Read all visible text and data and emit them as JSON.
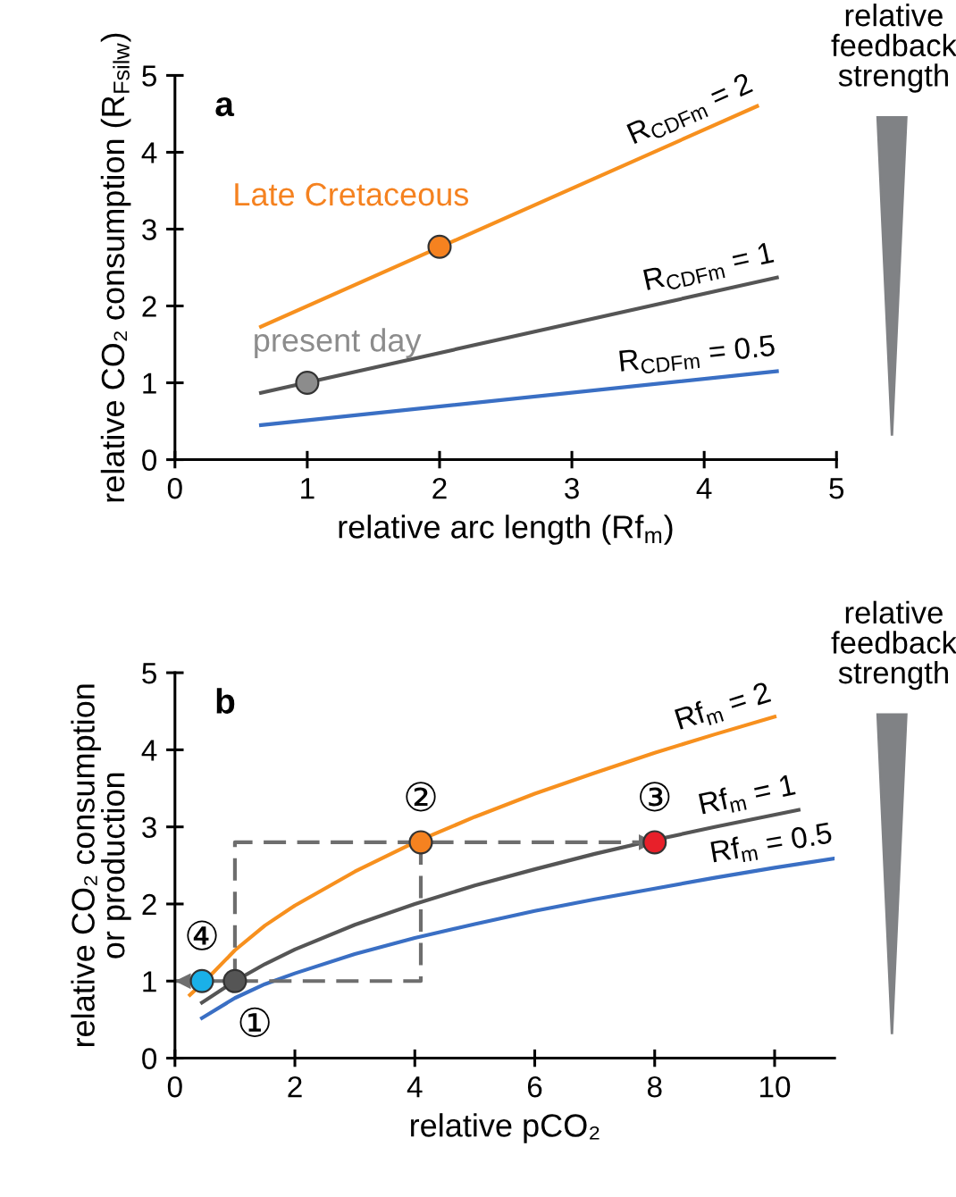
{
  "chart_data": [
    {
      "type": "line",
      "title": "a",
      "xlabel": "relative arc length (Rf$_{m}$)",
      "ylabel": "relative CO₂ consumption (R$_{Fsilw}$)",
      "xlim": [
        0,
        5
      ],
      "ylim": [
        0,
        5
      ],
      "xticks": [
        0,
        1,
        2,
        3,
        4,
        5
      ],
      "yticks": [
        0,
        1,
        2,
        3,
        4,
        5
      ],
      "grid": false,
      "legend": false,
      "marker": "none",
      "line_style": "solid",
      "series": [
        {
          "name": "R$_{CDFm}$ = 2",
          "color": "#f7901e",
          "x": [
            0.65,
            4.4
          ],
          "values": [
            1.73,
            4.6
          ]
        },
        {
          "name": "R$_{CDFm}$ = 1",
          "color": "#555555",
          "x": [
            0.65,
            4.55
          ],
          "values": [
            0.87,
            2.37
          ]
        },
        {
          "name": "R$_{CDFm}$ = 0.5",
          "color": "#3a6fc4",
          "x": [
            0.65,
            4.55
          ],
          "values": [
            0.45,
            1.15
          ]
        },
        {
          "type": "scatter",
          "marker": "circle",
          "color": "#f58220",
          "x": [
            2
          ],
          "values": [
            2.77
          ]
        },
        {
          "type": "scatter",
          "marker": "circle",
          "color": "#8c8c8c",
          "x": [
            1
          ],
          "values": [
            1.0
          ]
        }
      ],
      "annotations": [
        {
          "text": "Late Cretaceous",
          "x": 2,
          "y": 2.77
        },
        {
          "text": "present day",
          "x": 1,
          "y": 1.0
        },
        "relative feedback strength"
      ]
    },
    {
      "type": "line",
      "title": "b",
      "xlabel": "relative pCO₂",
      "ylabel": "relative CO₂ consumption or production",
      "xlim": [
        0,
        11
      ],
      "ylim": [
        0,
        5
      ],
      "xticks": [
        0,
        2,
        4,
        6,
        8,
        10
      ],
      "yticks": [
        0,
        1,
        2,
        3,
        4,
        5
      ],
      "grid": false,
      "legend": false,
      "marker": "none",
      "line_style": "solid",
      "series": [
        {
          "name": "Rf$_{m}$ = 2",
          "color": "#f7901e",
          "x": [
            0.25,
            0.5,
            1,
            1.5,
            2,
            3,
            4,
            5,
            6,
            7,
            8,
            9,
            10
          ],
          "values": [
            0.82,
            1.0,
            1.4,
            1.72,
            1.98,
            2.42,
            2.8,
            3.13,
            3.43,
            3.7,
            3.96,
            4.2,
            4.43
          ]
        },
        {
          "name": "Rf$_{m}$ = 1",
          "color": "#555555",
          "x": [
            0.45,
            1,
            1.5,
            2,
            3,
            4,
            5,
            6,
            7,
            8,
            9,
            10.4
          ],
          "values": [
            0.72,
            1.0,
            1.22,
            1.41,
            1.73,
            2.0,
            2.24,
            2.45,
            2.65,
            2.83,
            3.0,
            3.22
          ]
        },
        {
          "name": "Rf$_{m}$ = 0.5",
          "color": "#3a6fc4",
          "x": [
            0.45,
            1,
            1.5,
            2,
            3,
            4,
            5,
            6,
            7,
            8,
            9,
            10,
            11
          ],
          "values": [
            0.52,
            0.78,
            0.96,
            1.1,
            1.35,
            1.56,
            1.74,
            1.91,
            2.06,
            2.2,
            2.34,
            2.47,
            2.59
          ]
        },
        {
          "type": "line",
          "line_style": "dashed",
          "color": "#6e6e6e",
          "x": [
            1,
            1,
            8
          ],
          "values": [
            1.0,
            2.8,
            2.8
          ]
        },
        {
          "type": "line",
          "line_style": "dashed",
          "color": "#6e6e6e",
          "x": [
            4.1,
            4.1,
            0
          ],
          "values": [
            2.8,
            1.0,
            1.0
          ]
        },
        {
          "type": "scatter",
          "marker": "circle",
          "color": "#555555",
          "x": [
            1
          ],
          "values": [
            1.0
          ]
        },
        {
          "type": "scatter",
          "marker": "circle",
          "color": "#f58220",
          "x": [
            4.1
          ],
          "values": [
            2.8
          ]
        },
        {
          "type": "scatter",
          "marker": "circle",
          "color": "#e8202a",
          "x": [
            8
          ],
          "values": [
            2.8
          ]
        },
        {
          "type": "scatter",
          "marker": "circle",
          "color": "#1ab0e8",
          "x": [
            0.45
          ],
          "values": [
            1.0
          ]
        }
      ],
      "annotations": [
        {
          "text": "①",
          "x": 1,
          "y": 1.0
        },
        {
          "text": "②",
          "x": 4.1,
          "y": 2.8
        },
        {
          "text": "③",
          "x": 8,
          "y": 2.8
        },
        {
          "text": "④",
          "x": 0.45,
          "y": 1.0
        },
        "relative feedback strength"
      ]
    }
  ]
}
